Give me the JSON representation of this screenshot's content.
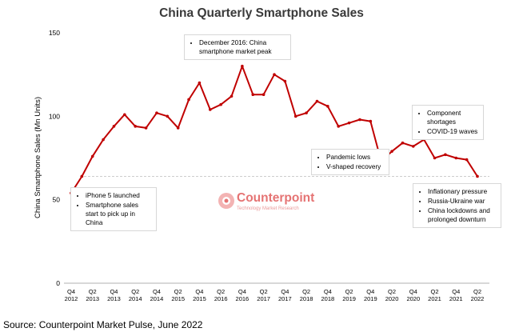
{
  "chart_data": {
    "type": "line",
    "title": "China Quarterly Smartphone Sales",
    "ylabel": "China Smartphone Sales (Mn Units)",
    "xlabel": "",
    "ylim": [
      0,
      150
    ],
    "yticks": [
      0,
      50,
      100,
      150
    ],
    "grid": false,
    "reference_line": 64,
    "x_tick_labels": [
      {
        "q": "Q4",
        "y": "2012"
      },
      {
        "q": "Q2",
        "y": "2013"
      },
      {
        "q": "Q4",
        "y": "2013"
      },
      {
        "q": "Q2",
        "y": "2014"
      },
      {
        "q": "Q4",
        "y": "2014"
      },
      {
        "q": "Q2",
        "y": "2015"
      },
      {
        "q": "Q4",
        "y": "2015"
      },
      {
        "q": "Q2",
        "y": "2016"
      },
      {
        "q": "Q4",
        "y": "2016"
      },
      {
        "q": "Q2",
        "y": "2017"
      },
      {
        "q": "Q4",
        "y": "2017"
      },
      {
        "q": "Q2",
        "y": "2018"
      },
      {
        "q": "Q4",
        "y": "2018"
      },
      {
        "q": "Q2",
        "y": "2019"
      },
      {
        "q": "Q4",
        "y": "2019"
      },
      {
        "q": "Q2",
        "y": "2020"
      },
      {
        "q": "Q4",
        "y": "2020"
      },
      {
        "q": "Q2",
        "y": "2021"
      },
      {
        "q": "Q4",
        "y": "2021"
      },
      {
        "q": "Q2",
        "y": "2022"
      }
    ],
    "series": [
      {
        "color": "#c00000",
        "values": [
          54,
          64,
          76,
          86,
          94,
          101,
          94,
          93,
          102,
          100,
          93,
          110,
          120,
          104,
          107,
          112,
          130,
          113,
          113,
          125,
          121,
          100,
          102,
          109,
          106,
          94,
          96,
          98,
          97,
          73,
          79,
          84,
          82,
          86,
          75,
          77,
          75,
          74,
          64
        ]
      }
    ]
  },
  "annotations": [
    {
      "id": "iphone5",
      "items": [
        "iPhone 5 launched",
        "Smartphone sales start to pick up in China"
      ]
    },
    {
      "id": "peak2016",
      "items": [
        "December 2016: China smartphone market peak"
      ]
    },
    {
      "id": "pandemic",
      "items": [
        "Pandemic lows",
        "V-shaped recovery"
      ]
    },
    {
      "id": "component",
      "items": [
        "Component shortages",
        "COVID-19 waves"
      ]
    },
    {
      "id": "inflation",
      "items": [
        "Inflationary pressure",
        "Russia-Ukraine war",
        "China lockdowns and prolonged downturn"
      ]
    }
  ],
  "logo": {
    "name": "Counterpoint",
    "tagline": "Technology Market Research"
  },
  "source": "Source: Counterpoint Market Pulse, June 2022"
}
